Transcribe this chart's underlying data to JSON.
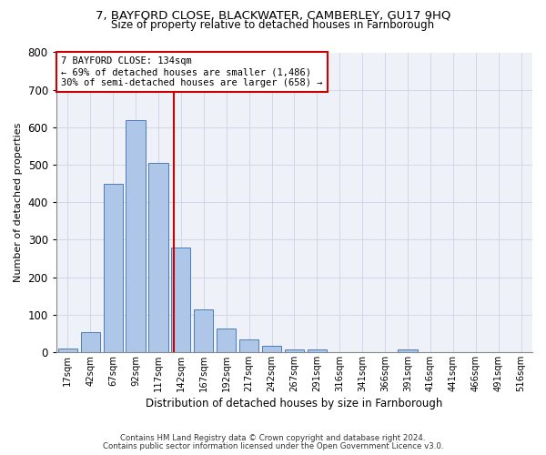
{
  "title_line1": "7, BAYFORD CLOSE, BLACKWATER, CAMBERLEY, GU17 9HQ",
  "title_line2": "Size of property relative to detached houses in Farnborough",
  "xlabel": "Distribution of detached houses by size in Farnborough",
  "ylabel": "Number of detached properties",
  "categories": [
    "17sqm",
    "42sqm",
    "67sqm",
    "92sqm",
    "117sqm",
    "142sqm",
    "167sqm",
    "192sqm",
    "217sqm",
    "242sqm",
    "267sqm",
    "291sqm",
    "316sqm",
    "341sqm",
    "366sqm",
    "391sqm",
    "416sqm",
    "441sqm",
    "466sqm",
    "491sqm",
    "516sqm"
  ],
  "bar_values": [
    10,
    52,
    450,
    620,
    505,
    280,
    115,
    62,
    33,
    17,
    8,
    8,
    0,
    0,
    0,
    7,
    0,
    0,
    0,
    0,
    0
  ],
  "bar_color": "#aec6e8",
  "bar_edge_color": "#4a7db5",
  "red_line_index": 4.68,
  "annotation_text_line1": "7 BAYFORD CLOSE: 134sqm",
  "annotation_text_line2": "← 69% of detached houses are smaller (1,486)",
  "annotation_text_line3": "30% of semi-detached houses are larger (658) →",
  "annotation_box_color": "#ffffff",
  "annotation_box_edge_color": "#cc0000",
  "ylim_max": 800,
  "yticks": [
    0,
    100,
    200,
    300,
    400,
    500,
    600,
    700,
    800
  ],
  "grid_color": "#d0d8e8",
  "background_color": "#eef2f8",
  "footnote1": "Contains HM Land Registry data © Crown copyright and database right 2024.",
  "footnote2": "Contains public sector information licensed under the Open Government Licence v3.0."
}
